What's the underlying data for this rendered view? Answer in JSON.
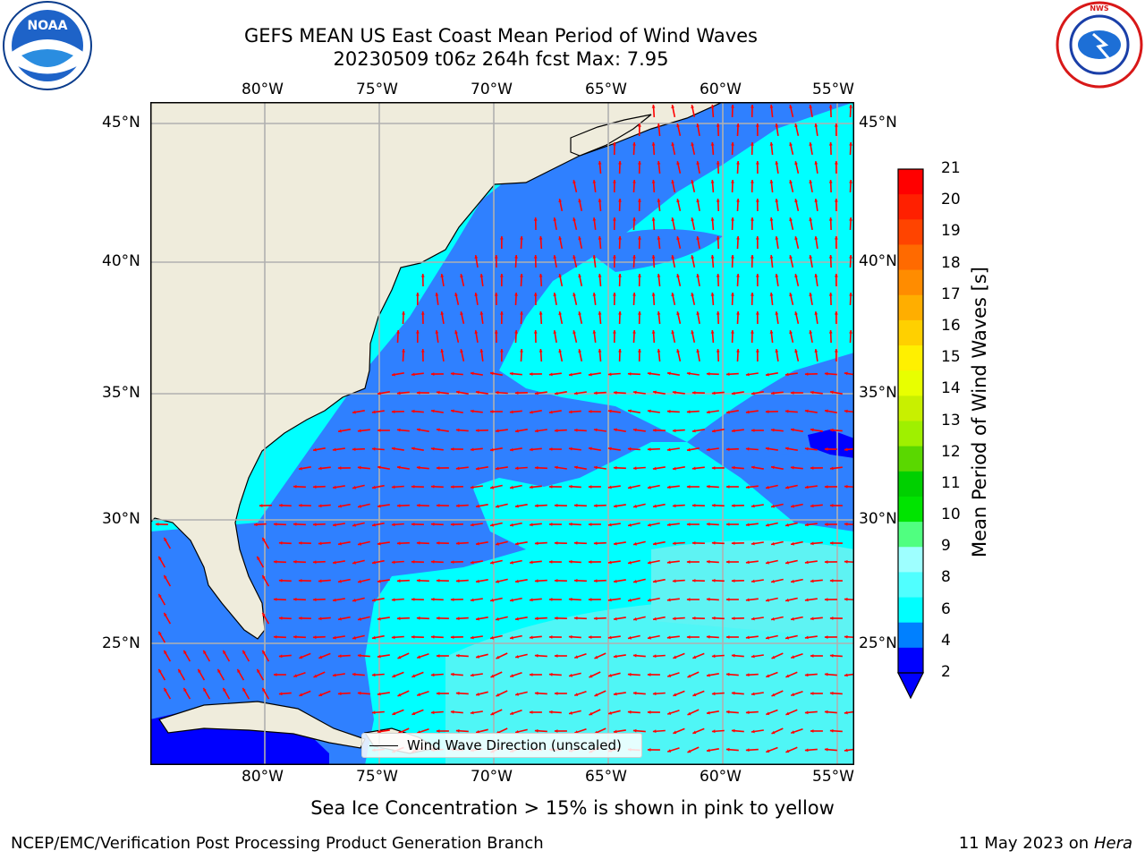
{
  "header": {
    "title_line1": "GEFS MEAN US East Coast Mean Period of Wind Waves",
    "title_line2": "20230509 t06z 264h fcst   Max: 7.95",
    "logo_left_text": "NOAA",
    "logo_right_text": "NATIONAL WEATHER SERVICE"
  },
  "map": {
    "lon_labels": [
      "80°W",
      "75°W",
      "70°W",
      "65°W",
      "60°W",
      "55°W"
    ],
    "lat_labels": [
      "45°N",
      "40°N",
      "35°N",
      "30°N",
      "25°N"
    ],
    "legend_label": "Wind Wave Direction (unscaled)"
  },
  "colorbar": {
    "label": "Mean Period of Wind Waves [s]",
    "ticks": [
      "21",
      "20",
      "19",
      "18",
      "17",
      "16",
      "15",
      "14",
      "13",
      "12",
      "11",
      "10",
      "9",
      "8",
      "6",
      "4",
      "2"
    ],
    "colors": [
      "#ff0000",
      "#ff2000",
      "#ff4400",
      "#ff6a00",
      "#ff8c00",
      "#ffae00",
      "#ffd000",
      "#fff000",
      "#e8ff00",
      "#c8f000",
      "#9ff000",
      "#5ad800",
      "#00d000",
      "#00e400",
      "#50ff80",
      "#9effff",
      "#50ffff",
      "#00ffff",
      "#0080ff",
      "#0000ff"
    ]
  },
  "notes": {
    "ice_note": "Sea Ice Concentration > 15% is shown in pink to yellow",
    "footer_left": "NCEP/EMC/Verification Post Processing Product Generation Branch",
    "footer_date": "11 May 2023 on",
    "footer_host": "Hera"
  },
  "palette": {
    "land": "#efecdc",
    "ocean_light": "#00ffff",
    "ocean_mid": "#2f80ff",
    "ocean_deep": "#0000ff",
    "arrow": "#ff0000",
    "grid": "#b0b0b0"
  }
}
